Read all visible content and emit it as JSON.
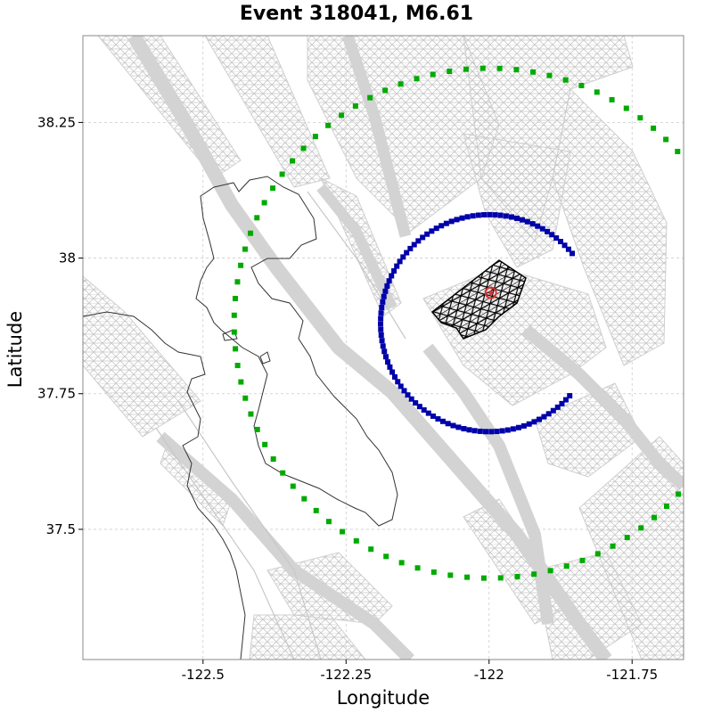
{
  "chart_data": {
    "type": "scatter",
    "title": "Event 318041, M6.61",
    "xlabel": "Longitude",
    "ylabel": "Latitude",
    "xlim": [
      -122.71,
      -121.66
    ],
    "ylim": [
      37.26,
      38.41
    ],
    "grid": true,
    "xticks": [
      {
        "value": -122.5,
        "label": "-122.5"
      },
      {
        "value": -122.25,
        "label": "-122.25"
      },
      {
        "value": -122.0,
        "label": "-122"
      },
      {
        "value": -121.75,
        "label": "-121.75"
      }
    ],
    "yticks": [
      {
        "value": 37.5,
        "label": "37.5"
      },
      {
        "value": 37.75,
        "label": "37.75"
      },
      {
        "value": 38.0,
        "label": "38"
      },
      {
        "value": 38.25,
        "label": "38.25"
      }
    ],
    "epicenter": {
      "lon": -121.997,
      "lat": 37.936
    },
    "colors": {
      "fault_mesh": "#d3d3d3",
      "coastline": "#333333",
      "rupture_mesh": "#000000",
      "epicenter": "#e03030",
      "inner_arc": "#0000aa",
      "outer_arc": "#00aa00",
      "grid": "#cccccc"
    },
    "series": [
      {
        "style": "blue-squares",
        "center": {
          "lon": -122.0,
          "lat": 37.88
        },
        "radius_deg": 0.2,
        "angle_start_deg": 40,
        "angle_end_deg": 318
      },
      {
        "style": "green-squares",
        "center": {
          "lon": -122.0,
          "lat": 37.88
        },
        "radius_deg": 0.47,
        "angle_start_deg": 31,
        "angle_end_deg": 333
      }
    ]
  }
}
